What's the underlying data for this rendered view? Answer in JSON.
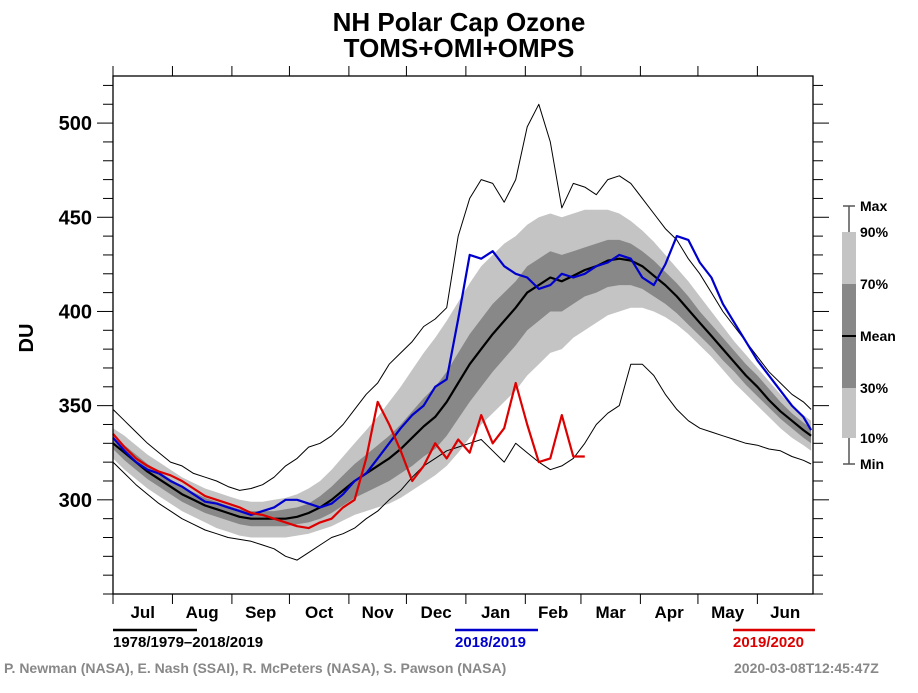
{
  "chart_data": {
    "type": "line",
    "title": "NH Polar Cap Ozone",
    "subtitle": "TOMS+OMI+OMPS",
    "ylabel": "DU",
    "xlabel": "",
    "ylim": [
      250,
      525
    ],
    "xlim_days": [
      0,
      365
    ],
    "yticks": [
      300,
      350,
      400,
      450,
      500
    ],
    "yminor_step": 10,
    "months": [
      "Jul",
      "Aug",
      "Sep",
      "Oct",
      "Nov",
      "Dec",
      "Jan",
      "Feb",
      "Mar",
      "Apr",
      "May",
      "Jun"
    ],
    "month_start_days": [
      0,
      31,
      62,
      92,
      123,
      153,
      184,
      215,
      244,
      275,
      305,
      336,
      365
    ],
    "x_days": [
      0,
      6,
      12,
      18,
      24,
      30,
      36,
      42,
      48,
      54,
      60,
      66,
      72,
      78,
      84,
      90,
      96,
      102,
      108,
      114,
      120,
      126,
      132,
      138,
      144,
      150,
      156,
      162,
      168,
      174,
      180,
      186,
      192,
      198,
      204,
      210,
      216,
      222,
      228,
      234,
      240,
      246,
      252,
      258,
      264,
      270,
      276,
      282,
      288,
      294,
      300,
      306,
      312,
      318,
      324,
      330,
      336,
      342,
      348,
      354,
      360,
      364
    ],
    "climatology": {
      "label": "1978/1979–2018/2019",
      "mean": [
        330,
        325,
        320,
        315,
        311,
        307,
        303,
        300,
        297,
        295,
        293,
        291,
        290,
        290,
        290,
        290,
        291,
        293,
        296,
        300,
        305,
        310,
        314,
        318,
        322,
        327,
        333,
        339,
        344,
        352,
        362,
        372,
        380,
        388,
        395,
        402,
        410,
        414,
        418,
        416,
        419,
        422,
        424,
        427,
        428,
        427,
        424,
        419,
        414,
        408,
        401,
        394,
        387,
        380,
        373,
        366,
        360,
        353,
        347,
        342,
        337,
        334
      ],
      "p30": [
        327,
        321,
        316,
        311,
        307,
        303,
        299,
        296,
        293,
        291,
        289,
        287,
        286,
        286,
        286,
        286,
        287,
        288,
        290,
        293,
        297,
        301,
        304,
        307,
        310,
        314,
        318,
        323,
        327,
        334,
        343,
        352,
        360,
        368,
        375,
        382,
        390,
        395,
        400,
        400,
        404,
        408,
        410,
        413,
        414,
        414,
        412,
        408,
        404,
        399,
        393,
        387,
        381,
        374,
        368,
        361,
        355,
        349,
        343,
        338,
        333,
        330
      ],
      "p70": [
        333,
        329,
        324,
        319,
        315,
        311,
        307,
        304,
        301,
        299,
        297,
        295,
        294,
        294,
        294,
        295,
        296,
        298,
        302,
        307,
        313,
        319,
        324,
        329,
        334,
        340,
        347,
        354,
        360,
        368,
        378,
        388,
        396,
        404,
        410,
        416,
        424,
        428,
        432,
        430,
        432,
        434,
        436,
        438,
        438,
        436,
        432,
        427,
        421,
        415,
        408,
        400,
        393,
        386,
        379,
        372,
        366,
        359,
        352,
        346,
        341,
        338
      ],
      "p10": [
        322,
        316,
        311,
        306,
        302,
        298,
        294,
        291,
        288,
        285,
        283,
        281,
        280,
        280,
        280,
        280,
        281,
        282,
        284,
        286,
        289,
        292,
        294,
        296,
        298,
        301,
        305,
        309,
        313,
        318,
        325,
        333,
        340,
        346,
        352,
        358,
        366,
        372,
        378,
        380,
        386,
        390,
        394,
        398,
        400,
        402,
        402,
        400,
        397,
        393,
        388,
        382,
        376,
        369,
        362,
        356,
        350,
        344,
        338,
        333,
        329,
        326
      ],
      "p90": [
        338,
        334,
        329,
        324,
        320,
        316,
        312,
        309,
        306,
        304,
        302,
        300,
        299,
        299,
        300,
        301,
        303,
        306,
        310,
        316,
        323,
        330,
        337,
        344,
        352,
        360,
        369,
        378,
        386,
        395,
        405,
        415,
        424,
        430,
        436,
        440,
        446,
        450,
        452,
        450,
        452,
        454,
        454,
        454,
        452,
        448,
        443,
        437,
        430,
        423,
        416,
        408,
        400,
        392,
        384,
        377,
        370,
        363,
        356,
        350,
        345,
        342
      ],
      "max": [
        348,
        342,
        336,
        330,
        325,
        320,
        318,
        314,
        312,
        310,
        307,
        305,
        306,
        308,
        312,
        318,
        322,
        328,
        330,
        334,
        340,
        348,
        356,
        362,
        372,
        378,
        384,
        392,
        396,
        402,
        440,
        460,
        470,
        468,
        458,
        470,
        498,
        510,
        490,
        455,
        468,
        466,
        462,
        470,
        472,
        468,
        460,
        452,
        444,
        438,
        428,
        420,
        410,
        400,
        392,
        384,
        376,
        368,
        362,
        356,
        352,
        348
      ],
      "min": [
        320,
        314,
        308,
        303,
        298,
        294,
        290,
        287,
        284,
        282,
        280,
        279,
        278,
        276,
        274,
        270,
        268,
        272,
        276,
        280,
        282,
        285,
        290,
        294,
        300,
        305,
        312,
        318,
        322,
        326,
        328,
        330,
        332,
        326,
        320,
        330,
        325,
        320,
        316,
        318,
        322,
        330,
        340,
        346,
        350,
        372,
        372,
        366,
        356,
        348,
        342,
        338,
        336,
        334,
        332,
        330,
        329,
        327,
        326,
        323,
        321,
        319
      ]
    },
    "series": [
      {
        "name": "2018/2019",
        "color": "#0000cc",
        "values": [
          333,
          326,
          320,
          316,
          314,
          310,
          307,
          303,
          299,
          298,
          296,
          294,
          292,
          294,
          296,
          300,
          300,
          298,
          296,
          298,
          303,
          310,
          314,
          322,
          330,
          338,
          345,
          350,
          360,
          364,
          396,
          430,
          428,
          432,
          424,
          420,
          418,
          412,
          414,
          420,
          418,
          420,
          424,
          426,
          430,
          428,
          418,
          414,
          425,
          440,
          438,
          426,
          418,
          404,
          394,
          384,
          374,
          366,
          358,
          350,
          344,
          337
        ]
      },
      {
        "name": "2019/2020",
        "color": "#dd0000",
        "values": [
          335,
          328,
          322,
          318,
          315,
          313,
          310,
          306,
          302,
          300,
          298,
          296,
          293,
          292,
          290,
          288,
          286,
          285,
          288,
          290,
          296,
          300,
          322,
          352,
          340,
          326,
          310,
          318,
          330,
          322,
          332,
          325,
          345,
          330,
          338,
          362,
          340,
          320,
          322,
          345,
          323,
          323,
          null,
          null,
          null,
          null,
          null,
          null,
          null,
          null,
          null,
          null,
          null,
          null,
          null,
          null,
          null,
          null,
          null,
          null,
          null,
          null
        ]
      }
    ],
    "legend_key": {
      "labels": [
        "Max",
        "90%",
        "70%",
        "Mean",
        "30%",
        "10%",
        "Min"
      ]
    },
    "legend_lines": [
      {
        "label": "1978/1979–2018/2019",
        "color": "#000000"
      },
      {
        "label": "2018/2019",
        "color": "#0000cc"
      },
      {
        "label": "2019/2020",
        "color": "#dd0000"
      }
    ]
  },
  "footer": {
    "credits": "P. Newman (NASA), E. Nash (SSAI), R. McPeters (NASA), S. Pawson (NASA)",
    "timestamp": "2020-03-08T12:45:47Z"
  }
}
